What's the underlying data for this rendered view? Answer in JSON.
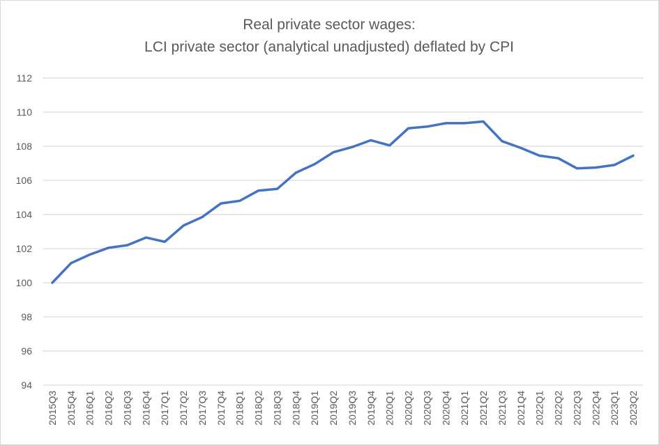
{
  "chart_data": {
    "type": "line",
    "title": [
      "Real private sector wages:",
      "LCI private sector (analytical unadjusted) deflated by CPI"
    ],
    "xlabel": "",
    "ylabel": "",
    "ylim": [
      94,
      112
    ],
    "yticks": [
      94,
      96,
      98,
      100,
      102,
      104,
      106,
      108,
      110,
      112
    ],
    "grid": true,
    "legend": "none",
    "categories": [
      "2015Q3",
      "2015Q4",
      "2016Q1",
      "2016Q2",
      "2016Q3",
      "2016Q4",
      "2017Q1",
      "2017Q2",
      "2017Q3",
      "2017Q4",
      "2018Q1",
      "2018Q2",
      "2018Q3",
      "2018Q4",
      "2019Q1",
      "2019Q2",
      "2019Q3",
      "2019Q4",
      "2020Q1",
      "2020Q2",
      "2020Q3",
      "2020Q4",
      "2021Q1",
      "2021Q2",
      "2021Q3",
      "2021Q4",
      "2022Q1",
      "2022Q2",
      "2022Q3",
      "2022Q4",
      "2023Q1",
      "2023Q2"
    ],
    "series": [
      {
        "name": "Real private sector wages",
        "color": "#4472c4",
        "values": [
          100,
          101.15,
          101.65,
          102.05,
          102.2,
          102.65,
          102.4,
          103.35,
          103.85,
          104.65,
          104.8,
          105.4,
          105.5,
          106.45,
          106.95,
          107.65,
          107.95,
          108.35,
          108.05,
          109.05,
          109.15,
          109.35,
          109.35,
          109.45,
          108.3,
          107.9,
          107.45,
          107.3,
          106.7,
          106.75,
          106.9,
          107.45
        ]
      }
    ]
  }
}
